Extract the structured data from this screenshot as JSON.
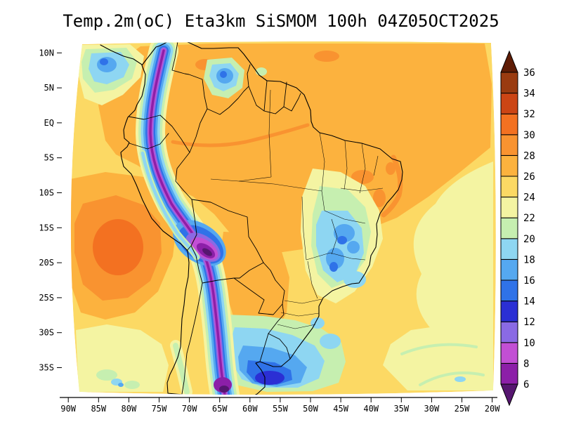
{
  "title": "Temp.2m(oC) Eta3km SiSMOM 100h 04Z05OCT2025",
  "axes": {
    "lat_ticks": [
      {
        "label": "10N",
        "deg": 10
      },
      {
        "label": "5N",
        "deg": 5
      },
      {
        "label": "EQ",
        "deg": 0
      },
      {
        "label": "5S",
        "deg": -5
      },
      {
        "label": "10S",
        "deg": -10
      },
      {
        "label": "15S",
        "deg": -15
      },
      {
        "label": "20S",
        "deg": -20
      },
      {
        "label": "25S",
        "deg": -25
      },
      {
        "label": "30S",
        "deg": -30
      },
      {
        "label": "35S",
        "deg": -35
      }
    ],
    "lon_ticks": [
      {
        "label": "90W",
        "deg": 90
      },
      {
        "label": "85W",
        "deg": 85
      },
      {
        "label": "80W",
        "deg": 80
      },
      {
        "label": "75W",
        "deg": 75
      },
      {
        "label": "70W",
        "deg": 70
      },
      {
        "label": "65W",
        "deg": 65
      },
      {
        "label": "60W",
        "deg": 60
      },
      {
        "label": "55W",
        "deg": 55
      },
      {
        "label": "50W",
        "deg": 50
      },
      {
        "label": "45W",
        "deg": 45
      },
      {
        "label": "40W",
        "deg": 40
      },
      {
        "label": "35W",
        "deg": 35
      },
      {
        "label": "30W",
        "deg": 30
      },
      {
        "label": "25W",
        "deg": 25
      },
      {
        "label": "20W",
        "deg": 20
      }
    ]
  },
  "colorbar": {
    "labels": [
      "36",
      "34",
      "32",
      "30",
      "28",
      "26",
      "24",
      "22",
      "20",
      "18",
      "16",
      "14",
      "12",
      "10",
      "8",
      "6"
    ],
    "bands": [
      {
        "id": "below6",
        "color": "#561670"
      },
      {
        "id": "6",
        "color": "#8c1fa8"
      },
      {
        "id": "8",
        "color": "#c24fd4"
      },
      {
        "id": "10",
        "color": "#8a6ae4"
      },
      {
        "id": "12",
        "color": "#2b2fd4"
      },
      {
        "id": "14",
        "color": "#2f72e8"
      },
      {
        "id": "16",
        "color": "#55a8f0"
      },
      {
        "id": "18",
        "color": "#8ed6f2"
      },
      {
        "id": "20",
        "color": "#c6efb0"
      },
      {
        "id": "22",
        "color": "#f4f4a2"
      },
      {
        "id": "24",
        "color": "#fcd964"
      },
      {
        "id": "26",
        "color": "#fcb23e"
      },
      {
        "id": "28",
        "color": "#f99330"
      },
      {
        "id": "30",
        "color": "#f37121"
      },
      {
        "id": "32",
        "color": "#cc4515"
      },
      {
        "id": "34",
        "color": "#9a3b10"
      },
      {
        "id": "above36",
        "color": "#5e1c05"
      }
    ]
  },
  "chart_data": {
    "type": "heatmap",
    "title": "Temp.2m(oC) Eta3km SiSMOM 100h 04Z05OCT2025",
    "variable": "2-m air temperature (oC)",
    "model": "Eta3km SiSMOM",
    "forecast_hour": "100h",
    "valid_time": "04Z05OCT2025",
    "x_ticks": [
      "90W",
      "85W",
      "80W",
      "75W",
      "70W",
      "65W",
      "60W",
      "55W",
      "50W",
      "45W",
      "40W",
      "35W",
      "30W",
      "25W",
      "20W"
    ],
    "y_ticks": [
      "10N",
      "5N",
      "EQ",
      "5S",
      "10S",
      "15S",
      "20S",
      "25S",
      "30S",
      "35S"
    ],
    "levels_degC": [
      6,
      8,
      10,
      12,
      14,
      16,
      18,
      20,
      22,
      24,
      26,
      28,
      30,
      32,
      34,
      36
    ],
    "palette_low_to_high": [
      "#561670",
      "#8c1fa8",
      "#c24fd4",
      "#8a6ae4",
      "#2b2fd4",
      "#2f72e8",
      "#55a8f0",
      "#8ed6f2",
      "#c6efb0",
      "#f4f4a2",
      "#fcd964",
      "#fcb23e",
      "#f99330",
      "#f37121",
      "#cc4515",
      "#9a3b10",
      "#5e1c05"
    ],
    "legend_position": "right",
    "features": [
      "Andes cordillera: narrow cold band 6-16C, below-6C cores over the Altiplano and southern Chile",
      "Amazon basin, Venezuela and NE Brazil: broad 26-28C with scattered 28-30C patches",
      "Subtropical SE Pacific west of Peru/Chile: warm 28-30C patch",
      "Central/SE Brazil highlands: cool 14-22C pockets",
      "South Atlantic off Uruguay/Argentina: cold pool 12-18C with 12-14C core",
      "Open tropical Atlantic: 22-26C, paler toward eastern edge",
      "NW Pacific corner and Guiana highlands: isolated 14-20C cool patches"
    ]
  }
}
